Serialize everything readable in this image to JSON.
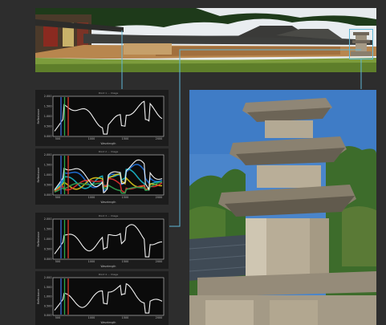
{
  "panorama": {
    "subject": "temple-courtyard-panorama",
    "colors": {
      "sky": "#e8ecef",
      "trees": "#1f3a1b",
      "roof": "#3c3c3a",
      "wall": "#b7844c",
      "ground": "#7a9a3b"
    }
  },
  "photo": {
    "subject": "stone-pagoda-closeup",
    "colors": {
      "sky": "#4d86cc",
      "stone": "#b5ab99",
      "trees": "#3e6b2a"
    }
  },
  "highlight_color": "#5fb7d6",
  "plots": [
    {
      "title": "Point 1 ... Image",
      "ylabel": "Reflectance",
      "xlabel": "Wavelength",
      "xticks": [
        "500",
        "1000",
        "1500",
        "2000"
      ],
      "yticks": [
        "0.000",
        "0.500",
        "1.000",
        "1.500",
        "2.000"
      ],
      "markers": [
        "#3a6fd8",
        "#2aa84a",
        "#e23a2a"
      ]
    },
    {
      "title": "Point 2 ... Image",
      "ylabel": "Reflectance",
      "xlabel": "Wavelength",
      "xticks": [
        "500",
        "1000",
        "1500",
        "2000"
      ],
      "yticks": [
        "0.000",
        "0.500",
        "1.000",
        "1.500",
        "2.000"
      ],
      "markers": [
        "#3a6fd8",
        "#2aa84a",
        "#e23a2a"
      ],
      "extra_series_colors": [
        "#1e6fd8",
        "#19b6c8",
        "#d8c21a",
        "#e03030",
        "#30a050"
      ]
    },
    {
      "title": "Point 3 ... Image",
      "ylabel": "Reflectance",
      "xlabel": "Wavelength",
      "xticks": [
        "500",
        "1000",
        "1500",
        "2000"
      ],
      "yticks": [
        "0.000",
        "0.500",
        "1.000",
        "1.500",
        "2.000"
      ],
      "markers": [
        "#3a6fd8",
        "#2aa84a",
        "#e23a2a"
      ]
    },
    {
      "title": "Point 4 ... Image",
      "ylabel": "Reflectance",
      "xlabel": "Wavelength",
      "xticks": [
        "500",
        "1000",
        "1500",
        "2000"
      ],
      "yticks": [
        "0.000",
        "0.500",
        "1.000",
        "1.500",
        "2.000"
      ],
      "markers": [
        "#3a6fd8",
        "#2aa84a",
        "#e23a2a"
      ]
    }
  ]
}
